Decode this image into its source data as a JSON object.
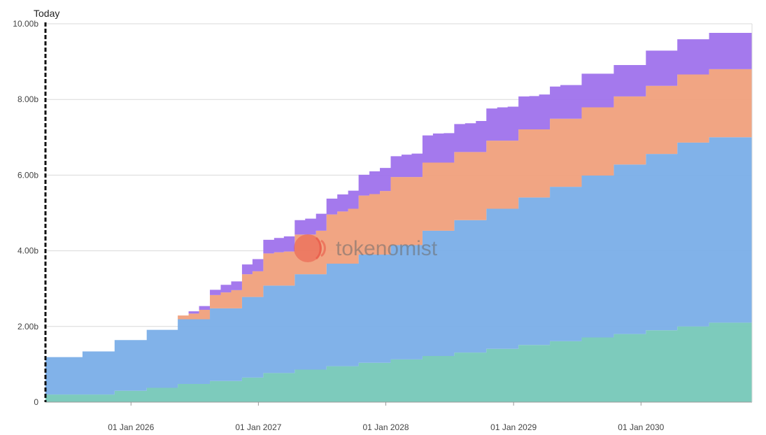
{
  "chart_data": {
    "type": "area",
    "step": true,
    "stacked": true,
    "today_label": "Today",
    "watermark": "tokenomist",
    "ylim": [
      0,
      10000000000
    ],
    "yticks": [
      {
        "value": 0,
        "label": "0"
      },
      {
        "value": 2000000000,
        "label": "2.00b"
      },
      {
        "value": 4000000000,
        "label": "4.00b"
      },
      {
        "value": 6000000000,
        "label": "6.00b"
      },
      {
        "value": 8000000000,
        "label": "8.00b"
      },
      {
        "value": 10000000000,
        "label": "10.00b"
      }
    ],
    "xlim": [
      "2025-05-01",
      "2030-11-15"
    ],
    "today": "2025-05-01",
    "xticks": [
      {
        "date": "2026-01-01",
        "label": "01 Jan 2026"
      },
      {
        "date": "2027-01-01",
        "label": "01 Jan 2027"
      },
      {
        "date": "2028-01-01",
        "label": "01 Jan 2028"
      },
      {
        "date": "2029-01-01",
        "label": "01 Jan 2029"
      },
      {
        "date": "2030-01-01",
        "label": "01 Jan 2030"
      }
    ],
    "grid": true,
    "x": [
      "2025-05-01",
      "2025-08-15",
      "2025-11-15",
      "2026-02-15",
      "2026-05-15",
      "2026-06-15",
      "2026-07-15",
      "2026-08-15",
      "2026-09-15",
      "2026-10-15",
      "2026-11-15",
      "2026-12-15",
      "2027-01-15",
      "2027-02-15",
      "2027-03-15",
      "2027-04-15",
      "2027-05-15",
      "2027-06-15",
      "2027-07-15",
      "2027-08-15",
      "2027-09-15",
      "2027-10-15",
      "2027-11-15",
      "2027-12-15",
      "2028-01-15",
      "2028-02-15",
      "2028-03-15",
      "2028-04-15",
      "2028-05-15",
      "2028-06-15",
      "2028-07-15",
      "2028-08-15",
      "2028-09-15",
      "2028-10-15",
      "2028-11-15",
      "2028-12-15",
      "2029-01-15",
      "2029-02-15",
      "2029-03-15",
      "2029-04-15",
      "2029-05-15",
      "2029-07-15",
      "2029-10-15",
      "2030-01-15",
      "2030-04-15",
      "2030-07-15"
    ],
    "series": [
      {
        "color": "#76c8b8",
        "values": [
          200000000,
          200000000,
          300000000,
          380000000,
          480000000,
          480000000,
          480000000,
          560000000,
          560000000,
          560000000,
          650000000,
          650000000,
          770000000,
          770000000,
          770000000,
          860000000,
          860000000,
          860000000,
          950000000,
          950000000,
          950000000,
          1040000000,
          1040000000,
          1040000000,
          1130000000,
          1130000000,
          1130000000,
          1220000000,
          1220000000,
          1220000000,
          1310000000,
          1310000000,
          1310000000,
          1410000000,
          1410000000,
          1410000000,
          1510000000,
          1510000000,
          1510000000,
          1610000000,
          1610000000,
          1710000000,
          1800000000,
          1900000000,
          2000000000,
          2100000000
        ]
      },
      {
        "color": "#7aaee8",
        "values": [
          990000000,
          1140000000,
          1340000000,
          1530000000,
          1710000000,
          1710000000,
          1710000000,
          1920000000,
          1920000000,
          1920000000,
          2130000000,
          2130000000,
          2310000000,
          2310000000,
          2310000000,
          2520000000,
          2520000000,
          2520000000,
          2710000000,
          2710000000,
          2710000000,
          2860000000,
          2860000000,
          2860000000,
          3020000000,
          3020000000,
          3020000000,
          3310000000,
          3310000000,
          3310000000,
          3500000000,
          3500000000,
          3500000000,
          3700000000,
          3700000000,
          3700000000,
          3900000000,
          3900000000,
          3900000000,
          4080000000,
          4080000000,
          4280000000,
          4480000000,
          4660000000,
          4860000000,
          4900000000
        ]
      },
      {
        "color": "#f0a07c",
        "values": [
          0,
          0,
          0,
          0,
          100000000,
          150000000,
          250000000,
          350000000,
          420000000,
          480000000,
          600000000,
          680000000,
          850000000,
          880000000,
          900000000,
          1050000000,
          1050000000,
          1150000000,
          1300000000,
          1380000000,
          1450000000,
          1560000000,
          1600000000,
          1680000000,
          1800000000,
          1800000000,
          1800000000,
          1800000000,
          1800000000,
          1800000000,
          1800000000,
          1800000000,
          1800000000,
          1800000000,
          1800000000,
          1800000000,
          1800000000,
          1800000000,
          1800000000,
          1800000000,
          1800000000,
          1800000000,
          1800000000,
          1800000000,
          1800000000,
          1800000000
        ]
      },
      {
        "color": "#9f72ec",
        "values": [
          0,
          0,
          0,
          0,
          0,
          60000000,
          100000000,
          140000000,
          200000000,
          230000000,
          260000000,
          320000000,
          360000000,
          380000000,
          400000000,
          380000000,
          420000000,
          450000000,
          420000000,
          450000000,
          480000000,
          550000000,
          600000000,
          610000000,
          550000000,
          590000000,
          620000000,
          720000000,
          770000000,
          780000000,
          740000000,
          760000000,
          820000000,
          850000000,
          880000000,
          900000000,
          870000000,
          880000000,
          920000000,
          850000000,
          890000000,
          890000000,
          830000000,
          930000000,
          930000000,
          960000000
        ]
      }
    ]
  }
}
